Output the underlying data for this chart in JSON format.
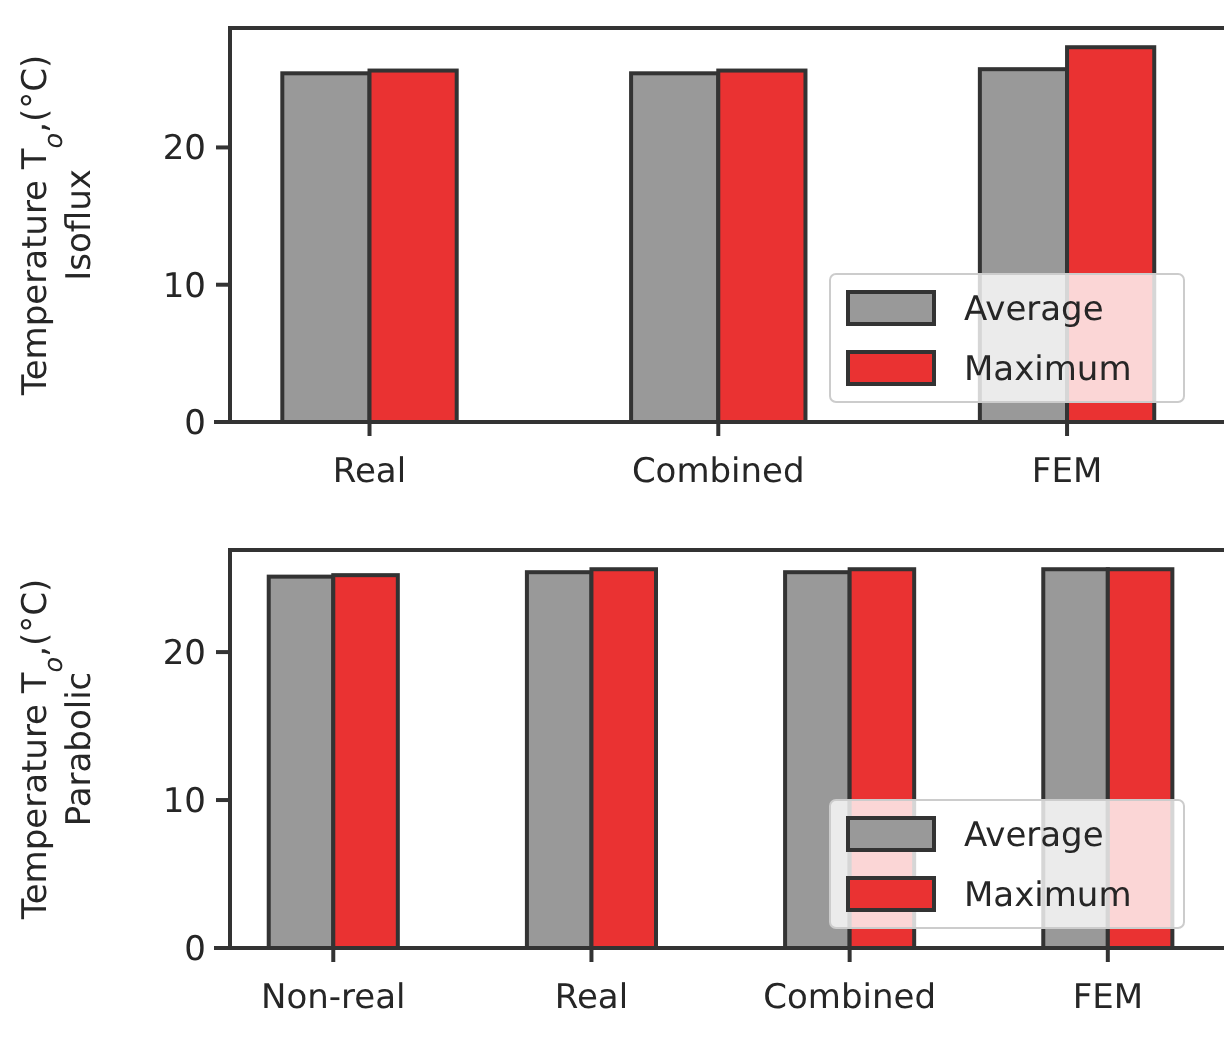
{
  "chart_data": [
    {
      "type": "bar",
      "ylabel": "Temperature T$_{o}$,(°C)\nIsoflux",
      "categories": [
        "Real",
        "Combined",
        "FEM"
      ],
      "series": [
        {
          "name": "Average",
          "color": "#999999",
          "values": [
            25.4,
            25.4,
            25.7
          ]
        },
        {
          "name": "Maximum",
          "color": "#ea3232",
          "values": [
            25.6,
            25.6,
            27.3
          ]
        }
      ],
      "ylim": [
        0,
        28.7
      ],
      "yticks": [
        0,
        10,
        20
      ],
      "legend": "bottom right",
      "grid": false
    },
    {
      "type": "bar",
      "ylabel": "Temperature T$_{o}$,(°C)\nParabolic",
      "categories": [
        "Non-real",
        "Real",
        "Combined",
        "FEM"
      ],
      "series": [
        {
          "name": "Average",
          "color": "#999999",
          "values": [
            25.1,
            25.4,
            25.4,
            25.6
          ]
        },
        {
          "name": "Maximum",
          "color": "#ea3232",
          "values": [
            25.2,
            25.6,
            25.6,
            25.6
          ]
        }
      ],
      "ylim": [
        0,
        26.9
      ],
      "yticks": [
        0,
        10,
        20
      ],
      "legend": "bottom right",
      "grid": false
    }
  ]
}
